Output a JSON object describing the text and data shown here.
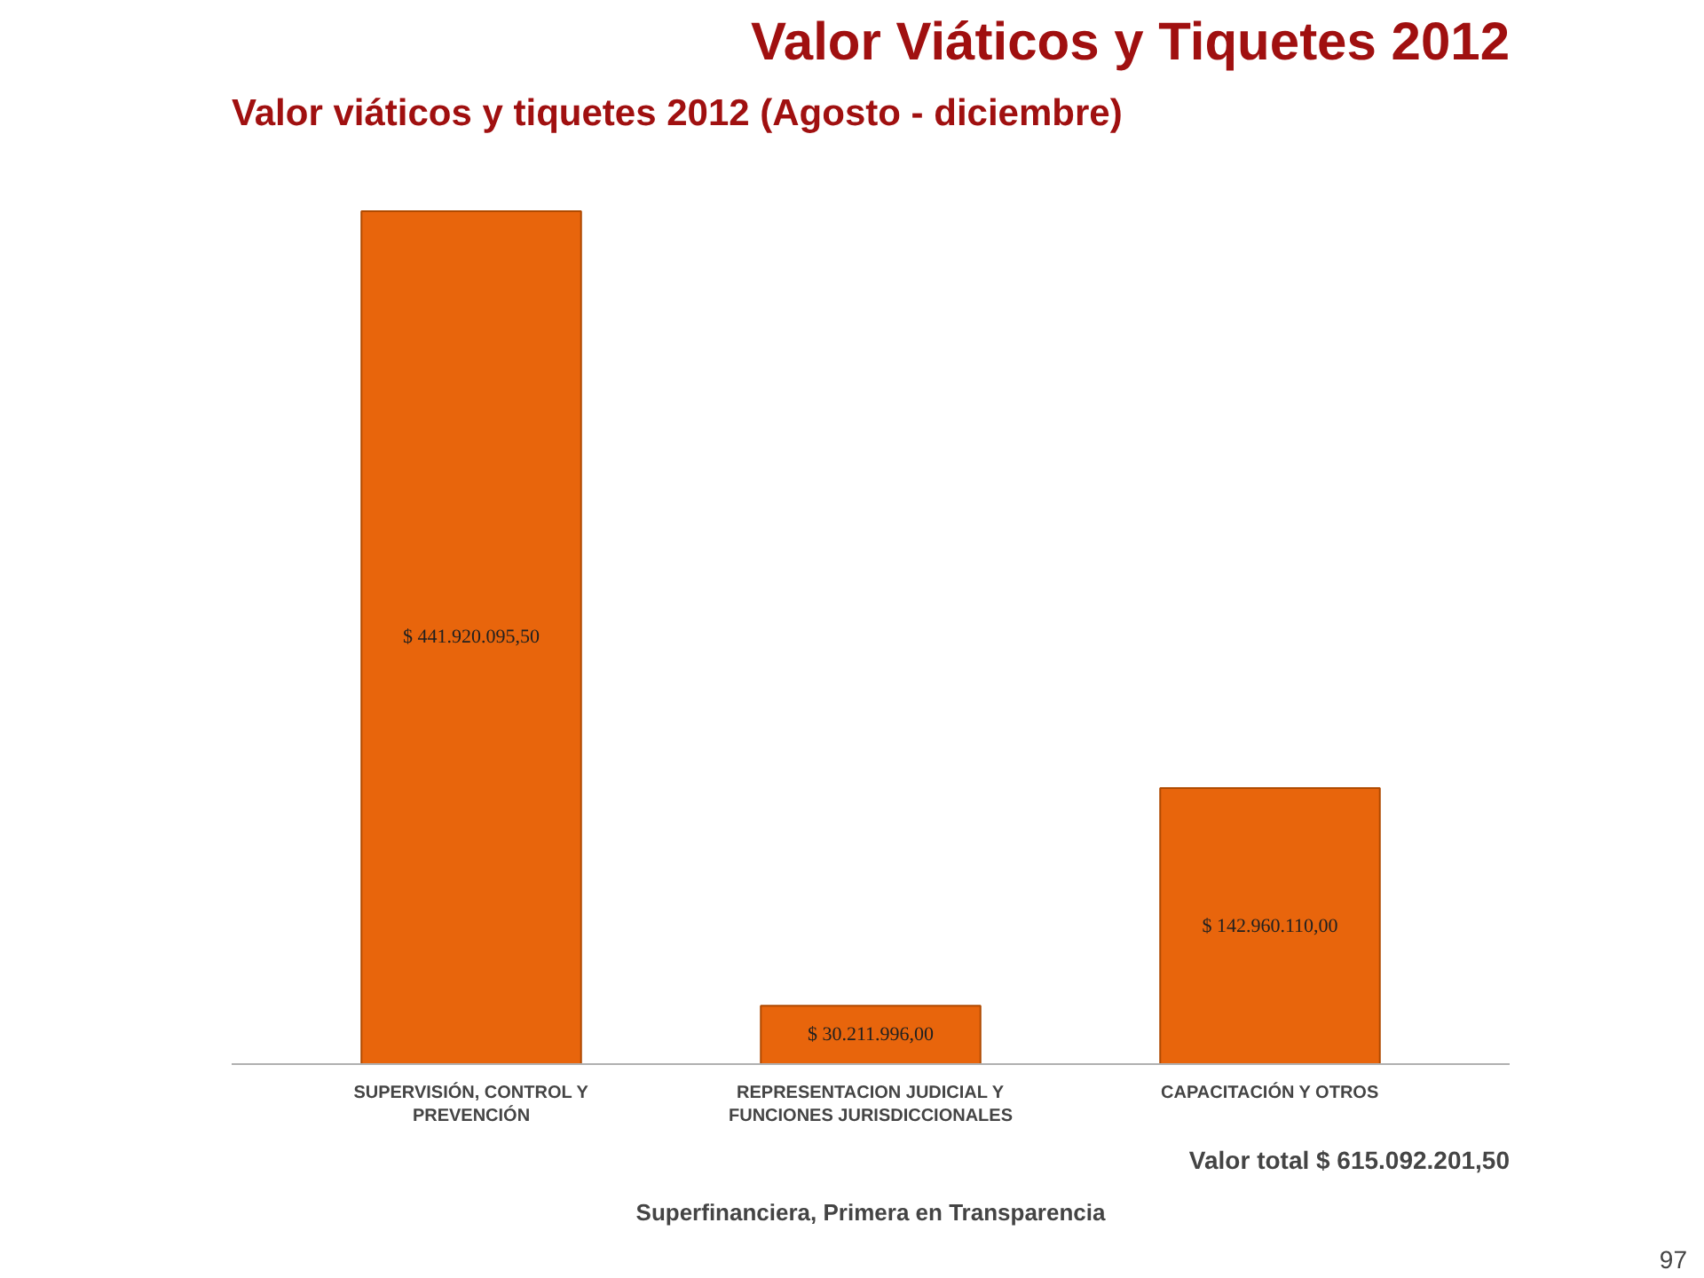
{
  "chart_data": {
    "type": "bar",
    "title": "Valor Viáticos y Tiquetes 2012",
    "subtitle": "Valor viáticos y tiquetes 2012 (Agosto - diciembre)",
    "categories": [
      "SUPERVISIÓN, CONTROL Y PREVENCIÓN",
      "REPRESENTACION JUDICIAL Y FUNCIONES JURISDICCIONALES",
      "CAPACITACIÓN Y OTROS"
    ],
    "values": [
      441920095.5,
      30211996.0,
      142960110.0
    ],
    "value_labels": [
      "$ 441.920.095,50",
      "$ 30.211.996,00",
      "$ 142.960.110,00"
    ],
    "color": "#e8650c",
    "annotations": [
      "Valor total $ 615.092.201,50",
      "Superfinanciera, Primera en Transparencia",
      "97"
    ],
    "grid": false
  }
}
